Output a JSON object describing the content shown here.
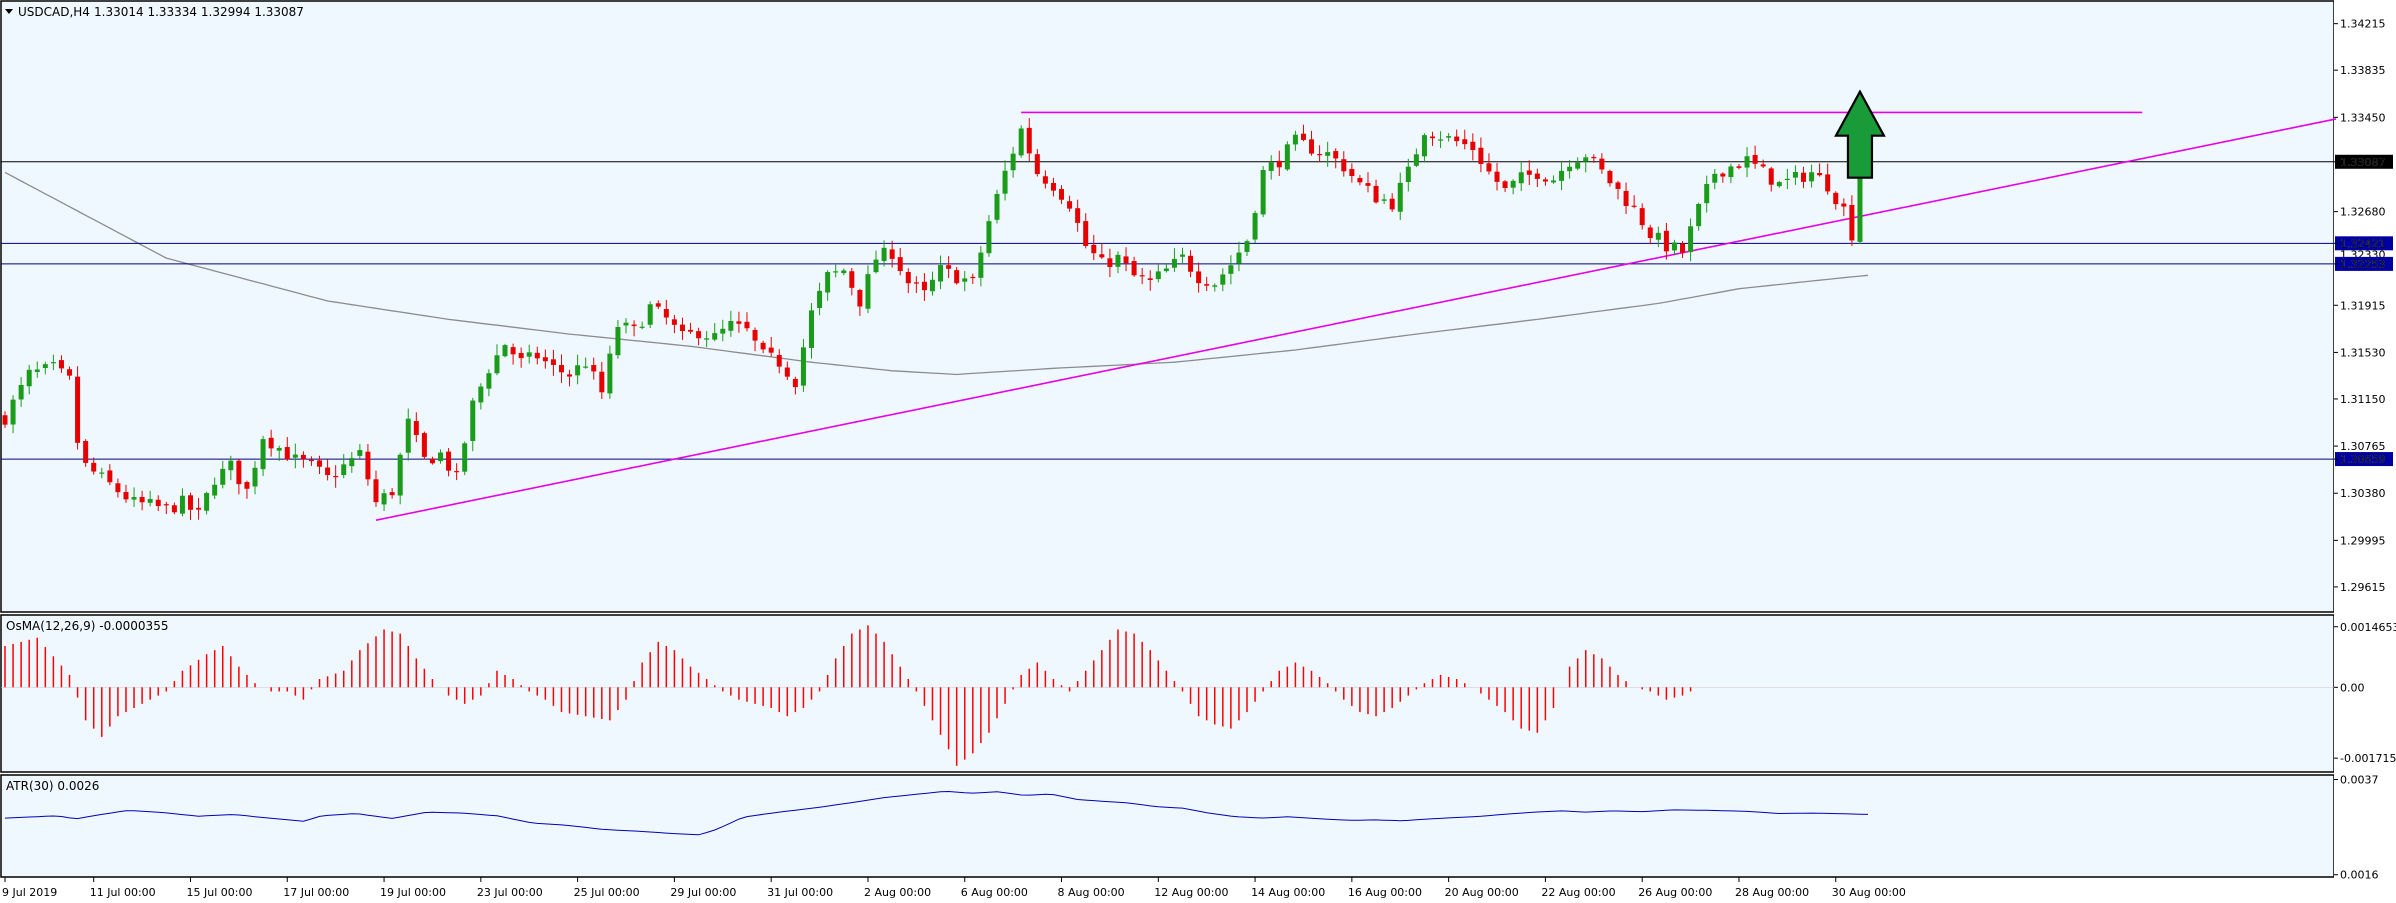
{
  "chart_data": {
    "type": "candlestick",
    "symbol_label": "USDCAD,H4",
    "ohlc_label": "1.33014 1.33334 1.32994 1.33087",
    "colors": {
      "background": "#f0f8ff",
      "bull": "#1a9b1a",
      "bear": "#e60000",
      "ma": "#8c8c8c",
      "trendline": "#e600e6",
      "hline": "#000080",
      "osma": "#ff0000",
      "atr": "#0000b4",
      "arrow": "#1a9b3a",
      "grid_text": "#000000"
    },
    "main": {
      "ylim": [
        1.2941,
        1.344
      ],
      "yticks": [
        "1.34215",
        "1.33835",
        "1.33450",
        "1.33087",
        "1.32680",
        "1.32421",
        "1.32253",
        "1.31915",
        "1.31530",
        "1.31150",
        "1.30765",
        "1.30659",
        "1.30380",
        "1.29995",
        "1.29615"
      ],
      "ytick_values": [
        1.34215,
        1.33835,
        1.3345,
        1.33087,
        1.3268,
        1.32421,
        1.32253,
        1.31915,
        1.3153,
        1.3115,
        1.30765,
        1.30659,
        1.3038,
        1.29995,
        1.29615
      ],
      "price_labels": [
        {
          "text": "1.33087",
          "value": 1.33087,
          "style": "current"
        },
        {
          "text": "1.32421",
          "value": 1.32421,
          "style": "level"
        },
        {
          "text": "1.32330",
          "value": 1.3233,
          "style": "hidden"
        },
        {
          "text": "1.32253",
          "value": 1.32253,
          "style": "level"
        },
        {
          "text": "1.30659",
          "value": 1.30659,
          "style": "level"
        }
      ],
      "hlines": [
        1.33087,
        1.32421,
        1.32253,
        1.30659
      ],
      "resistance": {
        "from_bar": 126,
        "to_bar": 265,
        "value": 1.3349
      },
      "trendline": {
        "bar1": 46,
        "val1": 1.3016,
        "bar2": 290,
        "val2": 1.3345
      },
      "arrow": {
        "bar": 230,
        "direction": "up"
      }
    },
    "osma": {
      "label": "OsMA(12,26,9) -0.0000355",
      "yticks": [
        "0.0014653",
        "0.00",
        "-0.0017153"
      ],
      "ytick_values": [
        0.0014653,
        0.0,
        -0.0017153
      ],
      "ylim": [
        -0.00205,
        0.00175
      ]
    },
    "atr": {
      "label": "ATR(30) 0.0026",
      "yticks": [
        "0.0037",
        "0.0016"
      ],
      "ytick_values": [
        0.0037,
        0.0016
      ],
      "ylim": [
        0.00155,
        0.0038
      ]
    },
    "x_axis": {
      "labels": [
        {
          "text": "9 Jul 2019",
          "bar": 0
        },
        {
          "text": "11 Jul 00:00",
          "bar": 11
        },
        {
          "text": "15 Jul 00:00",
          "bar": 23
        },
        {
          "text": "17 Jul 00:00",
          "bar": 35
        },
        {
          "text": "19 Jul 00:00",
          "bar": 47
        },
        {
          "text": "23 Jul 00:00",
          "bar": 59
        },
        {
          "text": "25 Jul 00:00",
          "bar": 71
        },
        {
          "text": "29 Jul 00:00",
          "bar": 83
        },
        {
          "text": "31 Jul 00:00",
          "bar": 95
        },
        {
          "text": "2 Aug 00:00",
          "bar": 107
        },
        {
          "text": "6 Aug 00:00",
          "bar": 119
        },
        {
          "text": "8 Aug 00:00",
          "bar": 131
        },
        {
          "text": "12 Aug 00:00",
          "bar": 143
        },
        {
          "text": "14 Aug 00:00",
          "bar": 155
        },
        {
          "text": "16 Aug 00:00",
          "bar": 167
        },
        {
          "text": "20 Aug 00:00",
          "bar": 179
        },
        {
          "text": "22 Aug 00:00",
          "bar": 191
        },
        {
          "text": "26 Aug 00:00",
          "bar": 203
        },
        {
          "text": "28 Aug 00:00",
          "bar": 215
        },
        {
          "text": "30 Aug 00:00",
          "bar": 227
        }
      ]
    },
    "close_path": [
      [
        0,
        1.31
      ],
      [
        3,
        1.3135
      ],
      [
        6,
        1.314
      ],
      [
        8,
        1.313
      ],
      [
        9,
        1.308
      ],
      [
        10,
        1.306
      ],
      [
        12,
        1.305
      ],
      [
        14,
        1.304
      ],
      [
        16,
        1.303
      ],
      [
        18,
        1.3028
      ],
      [
        20,
        1.3025
      ],
      [
        22,
        1.303
      ],
      [
        24,
        1.302
      ],
      [
        26,
        1.305
      ],
      [
        28,
        1.306
      ],
      [
        30,
        1.304
      ],
      [
        32,
        1.3085
      ],
      [
        34,
        1.3075
      ],
      [
        36,
        1.3065
      ],
      [
        38,
        1.306
      ],
      [
        40,
        1.305
      ],
      [
        42,
        1.306
      ],
      [
        44,
        1.307
      ],
      [
        46,
        1.303
      ],
      [
        48,
        1.304
      ],
      [
        50,
        1.3095
      ],
      [
        52,
        1.3065
      ],
      [
        54,
        1.307
      ],
      [
        56,
        1.305
      ],
      [
        58,
        1.311
      ],
      [
        60,
        1.314
      ],
      [
        62,
        1.316
      ],
      [
        64,
        1.3145
      ],
      [
        66,
        1.315
      ],
      [
        68,
        1.314
      ],
      [
        70,
        1.3135
      ],
      [
        72,
        1.3145
      ],
      [
        74,
        1.312
      ],
      [
        76,
        1.3175
      ],
      [
        78,
        1.317
      ],
      [
        80,
        1.319
      ],
      [
        82,
        1.318
      ],
      [
        84,
        1.3165
      ],
      [
        86,
        1.317
      ],
      [
        88,
        1.3165
      ],
      [
        90,
        1.3175
      ],
      [
        92,
        1.317
      ],
      [
        94,
        1.315
      ],
      [
        96,
        1.3145
      ],
      [
        98,
        1.313
      ],
      [
        100,
        1.3185
      ],
      [
        102,
        1.3215
      ],
      [
        104,
        1.322
      ],
      [
        106,
        1.3195
      ],
      [
        108,
        1.323
      ],
      [
        110,
        1.3235
      ],
      [
        112,
        1.321
      ],
      [
        114,
        1.32
      ],
      [
        116,
        1.322
      ],
      [
        118,
        1.3215
      ],
      [
        120,
        1.321
      ],
      [
        122,
        1.326
      ],
      [
        124,
        1.33
      ],
      [
        126,
        1.3335
      ],
      [
        128,
        1.33
      ],
      [
        130,
        1.329
      ],
      [
        132,
        1.3275
      ],
      [
        134,
        1.324
      ],
      [
        136,
        1.3225
      ],
      [
        138,
        1.323
      ],
      [
        140,
        1.3215
      ],
      [
        142,
        1.321
      ],
      [
        144,
        1.322
      ],
      [
        146,
        1.323
      ],
      [
        148,
        1.3215
      ],
      [
        150,
        1.321
      ],
      [
        152,
        1.3225
      ],
      [
        154,
        1.3245
      ],
      [
        156,
        1.33
      ],
      [
        158,
        1.331
      ],
      [
        160,
        1.3325
      ],
      [
        162,
        1.332
      ],
      [
        164,
        1.3315
      ],
      [
        166,
        1.3305
      ],
      [
        168,
        1.329
      ],
      [
        170,
        1.328
      ],
      [
        172,
        1.3275
      ],
      [
        174,
        1.33
      ],
      [
        176,
        1.3335
      ],
      [
        178,
        1.333
      ],
      [
        180,
        1.3325
      ],
      [
        182,
        1.332
      ],
      [
        184,
        1.33
      ],
      [
        186,
        1.3285
      ],
      [
        188,
        1.3295
      ],
      [
        190,
        1.33
      ],
      [
        192,
        1.3295
      ],
      [
        194,
        1.331
      ],
      [
        196,
        1.3315
      ],
      [
        198,
        1.33
      ],
      [
        200,
        1.3285
      ],
      [
        202,
        1.327
      ],
      [
        204,
        1.325
      ],
      [
        206,
        1.324
      ],
      [
        208,
        1.3235
      ],
      [
        210,
        1.327
      ],
      [
        212,
        1.33
      ],
      [
        214,
        1.3305
      ],
      [
        216,
        1.331
      ],
      [
        218,
        1.33
      ],
      [
        220,
        1.329
      ],
      [
        222,
        1.3295
      ],
      [
        224,
        1.33
      ],
      [
        226,
        1.329
      ],
      [
        228,
        1.327
      ],
      [
        229,
        1.325
      ],
      [
        230,
        1.3301
      ],
      [
        231,
        1.3309
      ]
    ],
    "ma_path": [
      [
        0,
        1.33
      ],
      [
        20,
        1.323
      ],
      [
        40,
        1.3195
      ],
      [
        55,
        1.318
      ],
      [
        70,
        1.3168
      ],
      [
        85,
        1.3158
      ],
      [
        100,
        1.3145
      ],
      [
        110,
        1.3138
      ],
      [
        118,
        1.3135
      ],
      [
        130,
        1.314
      ],
      [
        145,
        1.3145
      ],
      [
        160,
        1.3155
      ],
      [
        175,
        1.3168
      ],
      [
        190,
        1.318
      ],
      [
        205,
        1.3193
      ],
      [
        215,
        1.3205
      ],
      [
        225,
        1.3212
      ],
      [
        231,
        1.3216
      ]
    ],
    "osma_path": [
      [
        0,
        0.001
      ],
      [
        4,
        0.0012
      ],
      [
        8,
        0.0003
      ],
      [
        10,
        -0.0008
      ],
      [
        12,
        -0.0012
      ],
      [
        14,
        -0.0007
      ],
      [
        16,
        -0.0005
      ],
      [
        18,
        -0.0003
      ],
      [
        20,
        -0.0001
      ],
      [
        22,
        0.0004
      ],
      [
        25,
        0.0008
      ],
      [
        27,
        0.001
      ],
      [
        29,
        0.0005
      ],
      [
        31,
        0.0001
      ],
      [
        33,
        -0.0001
      ],
      [
        35,
        -0.0001
      ],
      [
        37,
        -0.0003
      ],
      [
        39,
        0.0002
      ],
      [
        42,
        0.0004
      ],
      [
        44,
        0.0009
      ],
      [
        47,
        0.0014
      ],
      [
        49,
        0.0013
      ],
      [
        51,
        0.0007
      ],
      [
        53,
        0.0002
      ],
      [
        55,
        -0.0002
      ],
      [
        57,
        -0.0004
      ],
      [
        59,
        -0.0002
      ],
      [
        61,
        0.0004
      ],
      [
        63,
        0.0002
      ],
      [
        65,
        -0.0001
      ],
      [
        67,
        -0.0003
      ],
      [
        69,
        -0.0006
      ],
      [
        72,
        -0.0007
      ],
      [
        75,
        -0.0008
      ],
      [
        77,
        -0.0003
      ],
      [
        79,
        0.0006
      ],
      [
        81,
        0.0011
      ],
      [
        83,
        0.0009
      ],
      [
        85,
        0.0005
      ],
      [
        87,
        0.0002
      ],
      [
        89,
        -0.0001
      ],
      [
        91,
        -0.0003
      ],
      [
        93,
        -0.0004
      ],
      [
        95,
        -0.0005
      ],
      [
        97,
        -0.0007
      ],
      [
        99,
        -0.0005
      ],
      [
        101,
        -0.0001
      ],
      [
        103,
        0.0007
      ],
      [
        105,
        0.0013
      ],
      [
        107,
        0.0015
      ],
      [
        109,
        0.0011
      ],
      [
        111,
        0.0005
      ],
      [
        113,
        -0.0001
      ],
      [
        115,
        -0.0008
      ],
      [
        117,
        -0.0015
      ],
      [
        118,
        -0.0019
      ],
      [
        120,
        -0.0016
      ],
      [
        122,
        -0.0011
      ],
      [
        124,
        -0.0004
      ],
      [
        126,
        0.0003
      ],
      [
        128,
        0.0006
      ],
      [
        130,
        0.0002
      ],
      [
        132,
        -0.0001
      ],
      [
        134,
        0.0004
      ],
      [
        136,
        0.0009
      ],
      [
        138,
        0.0014
      ],
      [
        140,
        0.0013
      ],
      [
        142,
        0.0009
      ],
      [
        144,
        0.0004
      ],
      [
        146,
        -0.0001
      ],
      [
        148,
        -0.0007
      ],
      [
        150,
        -0.0009
      ],
      [
        152,
        -0.001
      ],
      [
        154,
        -0.0006
      ],
      [
        156,
        -0.0001
      ],
      [
        158,
        0.0004
      ],
      [
        160,
        0.0006
      ],
      [
        162,
        0.0004
      ],
      [
        164,
        0.0001
      ],
      [
        166,
        -0.0003
      ],
      [
        168,
        -0.0006
      ],
      [
        170,
        -0.0007
      ],
      [
        172,
        -0.0005
      ],
      [
        174,
        -0.0002
      ],
      [
        176,
        0.0001
      ],
      [
        178,
        0.0003
      ],
      [
        180,
        0.0002
      ],
      [
        182,
        0.0
      ],
      [
        184,
        -0.0003
      ],
      [
        186,
        -0.0006
      ],
      [
        188,
        -0.001
      ],
      [
        190,
        -0.0011
      ],
      [
        192,
        -0.0005
      ],
      [
        194,
        0.0005
      ],
      [
        196,
        0.0009
      ],
      [
        198,
        0.0007
      ],
      [
        200,
        0.0003
      ],
      [
        202,
        0.0
      ],
      [
        204,
        -0.0001
      ],
      [
        206,
        -0.0003
      ],
      [
        208,
        -0.0002
      ],
      [
        210,
        0.0
      ]
    ],
    "atr_path": [
      [
        0,
        0.00285
      ],
      [
        6,
        0.0029
      ],
      [
        8,
        0.00283
      ],
      [
        10,
        0.0029
      ],
      [
        14,
        0.00302
      ],
      [
        18,
        0.00297
      ],
      [
        22,
        0.00289
      ],
      [
        26,
        0.00293
      ],
      [
        30,
        0.00285
      ],
      [
        34,
        0.00278
      ],
      [
        36,
        0.0029
      ],
      [
        40,
        0.00295
      ],
      [
        44,
        0.00284
      ],
      [
        48,
        0.00298
      ],
      [
        52,
        0.00296
      ],
      [
        56,
        0.0029
      ],
      [
        60,
        0.00274
      ],
      [
        64,
        0.00269
      ],
      [
        68,
        0.0026
      ],
      [
        72,
        0.00256
      ],
      [
        76,
        0.00251
      ],
      [
        79,
        0.00248
      ],
      [
        81,
        0.0026
      ],
      [
        84,
        0.00287
      ],
      [
        88,
        0.00298
      ],
      [
        92,
        0.00307
      ],
      [
        96,
        0.00318
      ],
      [
        100,
        0.0033
      ],
      [
        104,
        0.00338
      ],
      [
        107,
        0.00344
      ],
      [
        110,
        0.0034
      ],
      [
        113,
        0.00343
      ],
      [
        116,
        0.00335
      ],
      [
        119,
        0.00338
      ],
      [
        122,
        0.00326
      ],
      [
        125,
        0.00322
      ],
      [
        128,
        0.00318
      ],
      [
        131,
        0.0031
      ],
      [
        134,
        0.00307
      ],
      [
        137,
        0.00296
      ],
      [
        140,
        0.00288
      ],
      [
        143,
        0.00285
      ],
      [
        146,
        0.00288
      ],
      [
        150,
        0.00283
      ],
      [
        153,
        0.0028
      ],
      [
        156,
        0.00281
      ],
      [
        159,
        0.00279
      ],
      [
        162,
        0.00283
      ],
      [
        165,
        0.00286
      ],
      [
        168,
        0.00289
      ],
      [
        171,
        0.00294
      ],
      [
        174,
        0.00298
      ],
      [
        177,
        0.00301
      ],
      [
        180,
        0.00298
      ],
      [
        183,
        0.00301
      ],
      [
        186,
        0.00299
      ],
      [
        190,
        0.00303
      ],
      [
        194,
        0.00302
      ],
      [
        198,
        0.003
      ],
      [
        202,
        0.00295
      ],
      [
        206,
        0.00296
      ],
      [
        210,
        0.00294
      ],
      [
        212,
        0.00293
      ]
    ]
  }
}
